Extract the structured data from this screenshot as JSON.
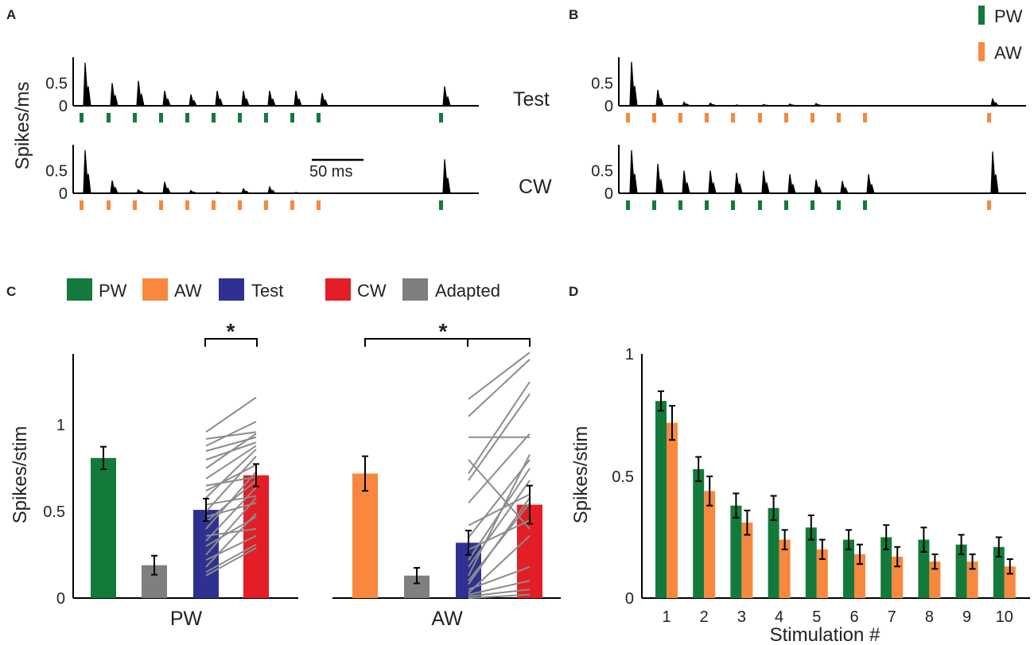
{
  "colors": {
    "pw": "#137a3c",
    "aw": "#f7883e",
    "test": "#2e3192",
    "cw": "#e41e26",
    "adapted": "#7f7f7f",
    "gray_line": "#8c8c8c",
    "axis": "#000000",
    "test_label": "#2e3192",
    "cw_label": "#e41e26"
  },
  "panels": {
    "a": "A",
    "b": "B",
    "c": "C",
    "d": "D"
  },
  "legend_ab": {
    "pw": "PW",
    "aw": "AW"
  },
  "legend_c": {
    "pw": "PW",
    "aw": "AW",
    "test": "Test",
    "cw": "CW",
    "adapted": "Adapted"
  },
  "chart_data": [
    {
      "panel": "A",
      "type": "line",
      "ylabel": "Spikes/ms",
      "yticks": [
        "0.5",
        "0"
      ],
      "scale_bar_label": "50 ms",
      "traces": [
        {
          "condition": "Test",
          "label": "Test",
          "peaks_spikes_per_ms": [
            0.95,
            0.5,
            0.55,
            0.33,
            0.25,
            0.33,
            0.33,
            0.33,
            0.33,
            0.28,
            0.43
          ],
          "stim_colors": [
            "pw",
            "pw",
            "pw",
            "pw",
            "pw",
            "pw",
            "pw",
            "pw",
            "pw",
            "pw",
            "pw"
          ]
        },
        {
          "condition": "CW",
          "label": "CW",
          "peaks_spikes_per_ms": [
            0.95,
            0.28,
            0.08,
            0.25,
            0.06,
            0.03,
            0.1,
            0.14,
            0.02,
            0.01,
            0.75
          ],
          "stim_colors": [
            "aw",
            "aw",
            "aw",
            "aw",
            "aw",
            "aw",
            "aw",
            "aw",
            "aw",
            "aw",
            "pw"
          ]
        }
      ]
    },
    {
      "panel": "B",
      "type": "line",
      "ylabel": "",
      "yticks": [
        "0.5",
        "0"
      ],
      "traces": [
        {
          "condition": "top",
          "peaks_spikes_per_ms": [
            0.97,
            0.35,
            0.08,
            0.06,
            0.02,
            0.03,
            0.04,
            0.05,
            0.01,
            0.01,
            0.15
          ],
          "stim_colors": [
            "aw",
            "aw",
            "aw",
            "aw",
            "aw",
            "aw",
            "aw",
            "aw",
            "aw",
            "aw",
            "aw"
          ]
        },
        {
          "condition": "bottom",
          "peaks_spikes_per_ms": [
            0.95,
            0.65,
            0.5,
            0.5,
            0.45,
            0.5,
            0.42,
            0.3,
            0.27,
            0.42,
            0.92
          ],
          "stim_colors": [
            "pw",
            "pw",
            "pw",
            "pw",
            "pw",
            "pw",
            "pw",
            "pw",
            "pw",
            "pw",
            "aw"
          ]
        }
      ]
    },
    {
      "panel": "C",
      "type": "bar",
      "ylabel": "Spikes/stim",
      "ylim": [
        0,
        1.4
      ],
      "yticks": [
        "0",
        "0.5",
        "1"
      ],
      "groups": [
        {
          "name": "PW",
          "bars": [
            {
              "condition": "PW",
              "value": 0.81,
              "err": 0.065
            },
            {
              "condition": "Adapted",
              "value": 0.19,
              "err": 0.055
            },
            {
              "condition": "Test",
              "value": 0.51,
              "err": 0.065
            },
            {
              "condition": "CW",
              "value": 0.71,
              "err": 0.065
            }
          ],
          "pairs": [
            [
              0.13,
              0.29
            ],
            [
              0.15,
              0.31
            ],
            [
              0.18,
              0.49
            ],
            [
              0.22,
              0.36
            ],
            [
              0.25,
              0.58
            ],
            [
              0.3,
              0.47
            ],
            [
              0.33,
              0.64
            ],
            [
              0.36,
              0.4
            ],
            [
              0.4,
              0.73
            ],
            [
              0.44,
              0.68
            ],
            [
              0.47,
              0.55
            ],
            [
              0.5,
              0.82
            ],
            [
              0.54,
              0.59
            ],
            [
              0.58,
              0.86
            ],
            [
              0.62,
              0.77
            ],
            [
              0.65,
              0.7
            ],
            [
              0.69,
              0.88
            ],
            [
              0.75,
              0.95
            ],
            [
              0.8,
              0.9
            ],
            [
              0.85,
              0.93
            ],
            [
              0.88,
              1.02
            ],
            [
              0.92,
              0.96
            ],
            [
              0.96,
              1.16
            ]
          ],
          "significance": "*"
        },
        {
          "name": "AW",
          "bars": [
            {
              "condition": "AW",
              "value": 0.72,
              "err": 0.1
            },
            {
              "condition": "Adapted",
              "value": 0.13,
              "err": 0.045
            },
            {
              "condition": "Test",
              "value": 0.32,
              "err": 0.07
            },
            {
              "condition": "CW",
              "value": 0.54,
              "err": 0.11
            }
          ],
          "pairs": [
            [
              0.0,
              0.02
            ],
            [
              0.01,
              0.05
            ],
            [
              0.02,
              0.1
            ],
            [
              0.03,
              0.36
            ],
            [
              0.05,
              0.18
            ],
            [
              0.08,
              0.58
            ],
            [
              0.1,
              0.55
            ],
            [
              0.13,
              0.83
            ],
            [
              0.18,
              0.68
            ],
            [
              0.22,
              0.75
            ],
            [
              0.28,
              0.45
            ],
            [
              0.35,
              0.8
            ],
            [
              0.42,
              0.6
            ],
            [
              0.55,
              0.95
            ],
            [
              0.68,
              1.18
            ],
            [
              0.72,
              1.25
            ],
            [
              0.8,
              0.4
            ],
            [
              0.93,
              0.93
            ],
            [
              1.05,
              1.38
            ],
            [
              1.15,
              1.42
            ]
          ],
          "significance": "*"
        }
      ]
    },
    {
      "panel": "D",
      "type": "bar",
      "xlabel": "Stimulation #",
      "ylabel": "Spikes/stim",
      "ylim": [
        0,
        1
      ],
      "yticks": [
        "0",
        "0.5",
        "1"
      ],
      "categories": [
        "1",
        "2",
        "3",
        "4",
        "5",
        "6",
        "7",
        "8",
        "9",
        "10"
      ],
      "series": [
        {
          "name": "PW",
          "values": [
            0.81,
            0.53,
            0.38,
            0.37,
            0.29,
            0.24,
            0.25,
            0.24,
            0.22,
            0.21
          ],
          "err": [
            0.04,
            0.05,
            0.05,
            0.05,
            0.05,
            0.04,
            0.05,
            0.05,
            0.04,
            0.04
          ]
        },
        {
          "name": "AW",
          "values": [
            0.72,
            0.44,
            0.31,
            0.24,
            0.2,
            0.18,
            0.17,
            0.15,
            0.15,
            0.13
          ],
          "err": [
            0.07,
            0.06,
            0.05,
            0.04,
            0.04,
            0.04,
            0.04,
            0.03,
            0.03,
            0.03
          ]
        }
      ]
    }
  ]
}
